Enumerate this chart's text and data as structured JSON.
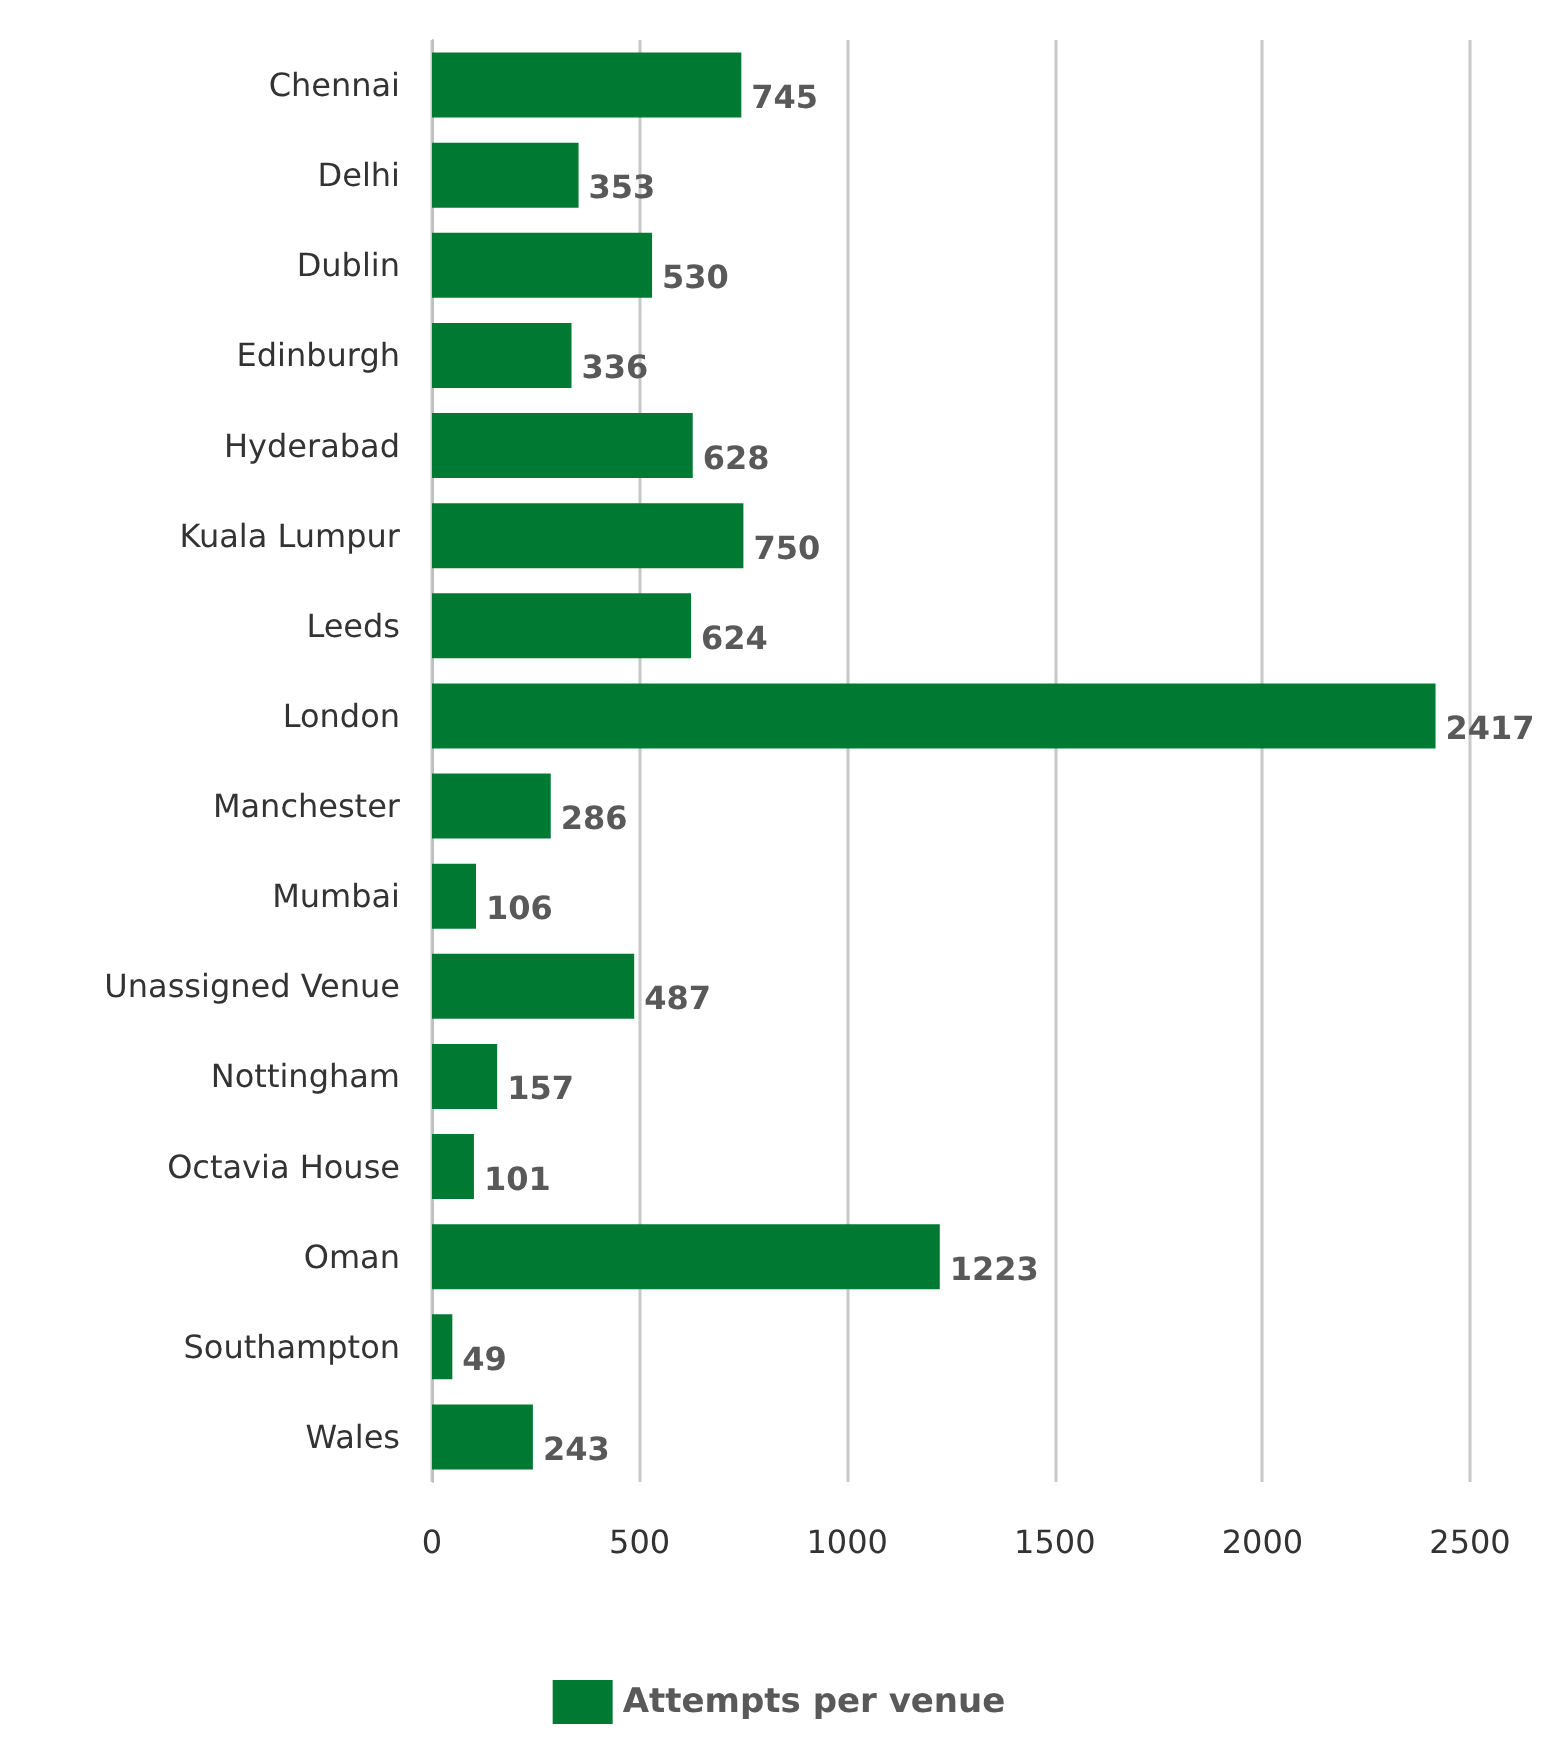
{
  "chart_data": {
    "type": "bar",
    "orientation": "horizontal",
    "categories": [
      "Chennai",
      "Delhi",
      "Dublin",
      "Edinburgh",
      "Hyderabad",
      "Kuala Lumpur",
      "Leeds",
      "London",
      "Manchester",
      "Mumbai",
      "Unassigned Venue",
      "Nottingham",
      "Octavia House",
      "Oman",
      "Southampton",
      "Wales"
    ],
    "series": [
      {
        "name": "Attempts per venue",
        "color": "#007a33",
        "values": [
          745,
          353,
          530,
          336,
          628,
          750,
          624,
          2417,
          286,
          106,
          487,
          157,
          101,
          1223,
          49,
          243
        ]
      }
    ],
    "xlim": [
      0,
      2500
    ],
    "xticks": [
      0,
      500,
      1000,
      1500,
      2000,
      2500
    ],
    "grid": "x",
    "legend": "bottom",
    "data_labels": true
  }
}
